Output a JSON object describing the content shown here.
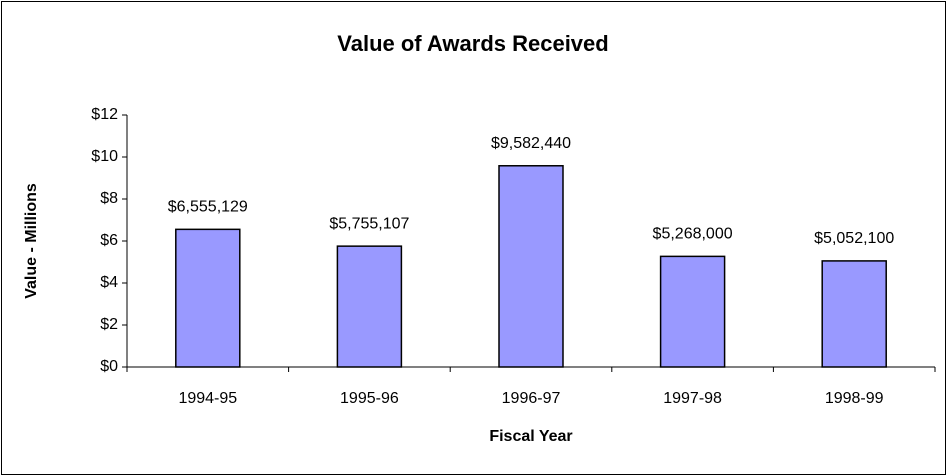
{
  "chart_data": {
    "type": "bar",
    "title": "Value of Awards Received",
    "x_label": "Fiscal Year",
    "y_label": "Value - Millions",
    "categories": [
      "1994-95",
      "1995-96",
      "1996-97",
      "1997-98",
      "1998-99"
    ],
    "values": [
      6.555129,
      5.755107,
      9.58244,
      5.268,
      5.0521
    ],
    "value_labels": [
      "$6,555,129",
      "$5,755,107",
      "$9,582,440",
      "$5,268,000",
      "$5,052,100"
    ],
    "color": "#9999ff",
    "ylim": [
      0,
      12
    ],
    "yticks": [
      {
        "value": 0,
        "label": "$0"
      },
      {
        "value": 2,
        "label": "$2"
      },
      {
        "value": 4,
        "label": "$4"
      },
      {
        "value": 6,
        "label": "$6"
      },
      {
        "value": 8,
        "label": "$8"
      },
      {
        "value": 10,
        "label": "$10"
      },
      {
        "value": 12,
        "label": "$12"
      }
    ],
    "grid": false
  }
}
